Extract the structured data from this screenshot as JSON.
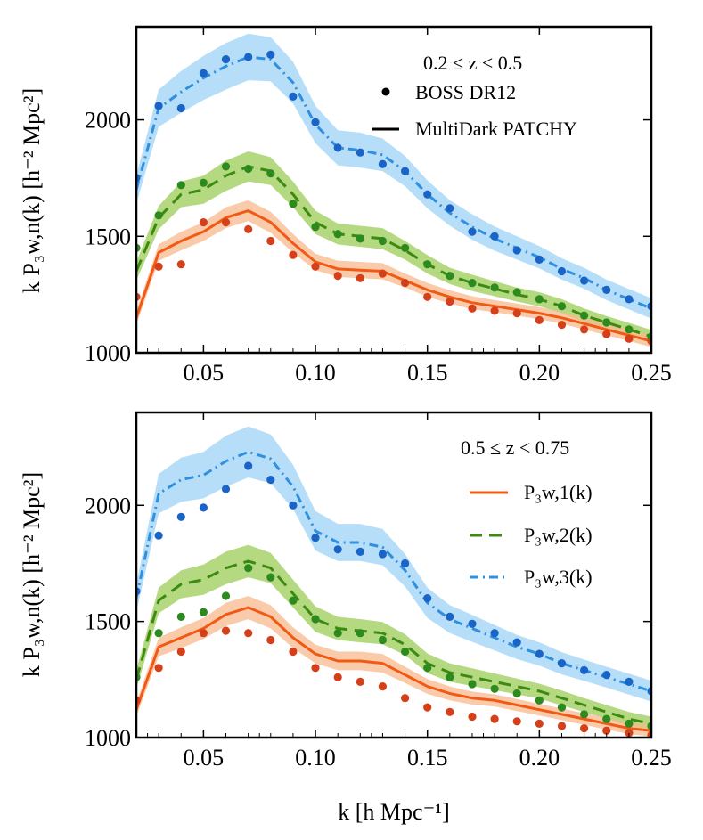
{
  "figure": {
    "x_axis_label": "k [h Mpc⁻¹]",
    "y_axis_label": "k P₃w,n(k) [h⁻² Mpc²]"
  },
  "colors": {
    "n1_line": "#f05a14",
    "n1_band": "#f8b98d",
    "n1_points": "#d5401a",
    "n2_line": "#3d8a12",
    "n2_band": "#9ccc57",
    "n2_points": "#2d8a1f",
    "n3_line": "#2f8fe0",
    "n3_band": "#9fd3f5",
    "n3_points": "#1a64c7"
  },
  "chart_data": [
    {
      "type": "line",
      "panel": "top",
      "redshift_label": "0.2 ≤ z < 0.5",
      "legend": [
        {
          "marker": "dot",
          "label": "BOSS DR12"
        },
        {
          "marker": "solid",
          "label": "MultiDark PATCHY"
        }
      ],
      "xlim": [
        0.02,
        0.25
      ],
      "ylim": [
        1000,
        2400
      ],
      "x_ticks": [
        "0.05",
        "0.10",
        "0.15",
        "0.20",
        "0.25"
      ],
      "y_ticks": [
        "1000",
        "1500",
        "2000"
      ],
      "x": [
        0.02,
        0.03,
        0.04,
        0.05,
        0.06,
        0.07,
        0.08,
        0.09,
        0.1,
        0.11,
        0.12,
        0.13,
        0.14,
        0.15,
        0.16,
        0.17,
        0.18,
        0.19,
        0.2,
        0.21,
        0.22,
        0.23,
        0.24,
        0.25
      ],
      "series": [
        {
          "n": 1,
          "style": "solid",
          "model": [
            1150,
            1430,
            1480,
            1520,
            1580,
            1610,
            1560,
            1470,
            1390,
            1360,
            1355,
            1350,
            1310,
            1270,
            1240,
            1215,
            1200,
            1185,
            1170,
            1150,
            1125,
            1100,
            1075,
            1050
          ],
          "band_halfwidth": [
            30,
            35,
            40,
            40,
            45,
            45,
            45,
            40,
            35,
            35,
            35,
            35,
            30,
            30,
            28,
            28,
            26,
            26,
            26,
            25,
            25,
            25,
            25,
            25
          ],
          "data": [
            1240,
            1370,
            1380,
            1560,
            1560,
            1530,
            1480,
            1420,
            1370,
            1330,
            1320,
            1340,
            1300,
            1240,
            1220,
            1190,
            1180,
            1170,
            1140,
            1120,
            1100,
            1080,
            1060,
            1050
          ]
        },
        {
          "n": 2,
          "style": "dashed",
          "model": [
            1350,
            1580,
            1680,
            1700,
            1760,
            1800,
            1780,
            1680,
            1560,
            1510,
            1500,
            1490,
            1440,
            1380,
            1330,
            1300,
            1275,
            1250,
            1230,
            1200,
            1160,
            1130,
            1100,
            1070
          ],
          "band_halfwidth": [
            40,
            50,
            55,
            60,
            65,
            65,
            60,
            55,
            50,
            45,
            45,
            45,
            40,
            40,
            35,
            35,
            32,
            30,
            30,
            30,
            30,
            28,
            28,
            28
          ],
          "data": [
            1450,
            1590,
            1720,
            1730,
            1800,
            1790,
            1770,
            1640,
            1540,
            1510,
            1490,
            1480,
            1450,
            1380,
            1330,
            1300,
            1280,
            1260,
            1230,
            1200,
            1160,
            1130,
            1100,
            1070
          ]
        },
        {
          "n": 3,
          "style": "dashdot",
          "model": [
            1700,
            2050,
            2120,
            2180,
            2230,
            2270,
            2260,
            2160,
            1980,
            1880,
            1870,
            1850,
            1780,
            1680,
            1600,
            1540,
            1490,
            1450,
            1410,
            1360,
            1320,
            1270,
            1230,
            1190
          ],
          "band_halfwidth": [
            60,
            80,
            90,
            95,
            100,
            100,
            95,
            90,
            80,
            75,
            75,
            70,
            65,
            60,
            55,
            55,
            52,
            50,
            48,
            46,
            45,
            44,
            44,
            44
          ],
          "data": [
            1750,
            2060,
            2050,
            2200,
            2260,
            2270,
            2280,
            2100,
            1990,
            1880,
            1860,
            1810,
            1780,
            1680,
            1620,
            1520,
            1500,
            1440,
            1400,
            1350,
            1310,
            1270,
            1230,
            1200
          ]
        }
      ]
    },
    {
      "type": "line",
      "panel": "bottom",
      "redshift_label": "0.5 ≤ z < 0.75",
      "legend": [
        {
          "marker": "solid",
          "series": 1,
          "label": "P₃w,1(k)"
        },
        {
          "marker": "dashed",
          "series": 2,
          "label": "P₃w,2(k)"
        },
        {
          "marker": "dashdot",
          "series": 3,
          "label": "P₃w,3(k)"
        }
      ],
      "xlim": [
        0.02,
        0.25
      ],
      "ylim": [
        1000,
        2400
      ],
      "x_ticks": [
        "0.05",
        "0.10",
        "0.15",
        "0.20",
        "0.25"
      ],
      "y_ticks": [
        "1000",
        "1500",
        "2000"
      ],
      "x": [
        0.02,
        0.03,
        0.04,
        0.05,
        0.06,
        0.07,
        0.08,
        0.09,
        0.1,
        0.11,
        0.12,
        0.13,
        0.14,
        0.15,
        0.16,
        0.17,
        0.18,
        0.19,
        0.2,
        0.21,
        0.22,
        0.23,
        0.24,
        0.25
      ],
      "series": [
        {
          "n": 1,
          "style": "solid",
          "model": [
            1120,
            1390,
            1430,
            1470,
            1530,
            1560,
            1520,
            1430,
            1360,
            1330,
            1330,
            1320,
            1270,
            1220,
            1190,
            1170,
            1160,
            1140,
            1120,
            1100,
            1080,
            1060,
            1040,
            1030
          ],
          "band_halfwidth": [
            30,
            40,
            45,
            45,
            50,
            50,
            50,
            45,
            40,
            40,
            40,
            40,
            35,
            32,
            30,
            28,
            26,
            26,
            25,
            25,
            25,
            25,
            25,
            25
          ],
          "data": [
            1160,
            1300,
            1370,
            1450,
            1460,
            1450,
            1420,
            1370,
            1300,
            1260,
            1240,
            1220,
            1170,
            1130,
            1110,
            1090,
            1080,
            1070,
            1060,
            1050,
            1040,
            1030,
            1020,
            1010
          ]
        },
        {
          "n": 2,
          "style": "dashed",
          "model": [
            1250,
            1590,
            1660,
            1680,
            1730,
            1760,
            1730,
            1620,
            1510,
            1470,
            1460,
            1450,
            1400,
            1320,
            1280,
            1260,
            1240,
            1220,
            1200,
            1170,
            1140,
            1110,
            1080,
            1060
          ],
          "band_halfwidth": [
            40,
            55,
            60,
            65,
            70,
            70,
            65,
            60,
            55,
            50,
            50,
            48,
            45,
            42,
            40,
            38,
            36,
            34,
            32,
            32,
            30,
            30,
            30,
            30
          ],
          "data": [
            1260,
            1450,
            1520,
            1540,
            1610,
            1730,
            1690,
            1590,
            1510,
            1450,
            1450,
            1420,
            1370,
            1300,
            1260,
            1230,
            1210,
            1190,
            1160,
            1130,
            1100,
            1080,
            1060,
            1050
          ]
        },
        {
          "n": 3,
          "style": "dashdot",
          "model": [
            1600,
            2050,
            2110,
            2130,
            2190,
            2230,
            2200,
            2080,
            1890,
            1840,
            1840,
            1820,
            1720,
            1580,
            1510,
            1470,
            1430,
            1390,
            1360,
            1320,
            1290,
            1260,
            1230,
            1200
          ],
          "band_halfwidth": [
            60,
            85,
            95,
            100,
            110,
            110,
            105,
            95,
            85,
            80,
            80,
            78,
            70,
            65,
            60,
            58,
            55,
            52,
            50,
            48,
            46,
            45,
            45,
            45
          ],
          "data": [
            1630,
            1870,
            1950,
            1990,
            2070,
            2170,
            2110,
            2000,
            1860,
            1810,
            1800,
            1790,
            1750,
            1600,
            1520,
            1490,
            1450,
            1410,
            1360,
            1320,
            1290,
            1270,
            1240,
            1200
          ]
        }
      ]
    }
  ]
}
